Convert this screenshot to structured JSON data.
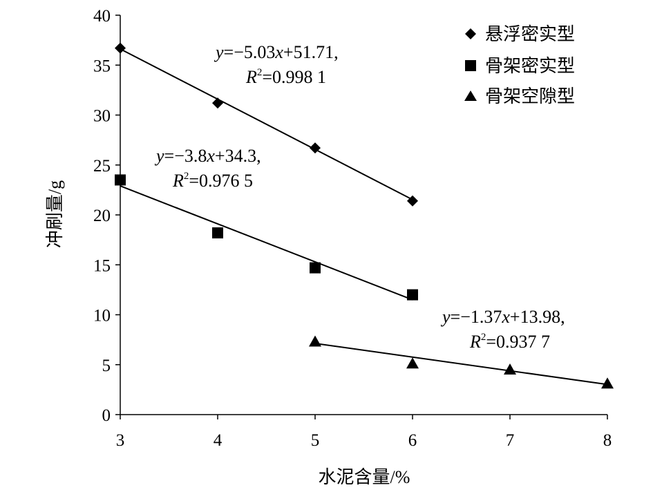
{
  "chart_data": {
    "type": "scatter",
    "xlabel": "水泥含量/%",
    "ylabel": "冲刷量/g",
    "xlim": [
      3,
      8
    ],
    "ylim": [
      0,
      40
    ],
    "xticks": [
      3,
      4,
      5,
      6,
      7,
      8
    ],
    "yticks": [
      0,
      5,
      10,
      15,
      20,
      25,
      30,
      35,
      40
    ],
    "grid": false,
    "legend_position": "top-right",
    "series": [
      {
        "name": "悬浮密实型",
        "marker": "diamond",
        "color": "#000000",
        "x": [
          3,
          4,
          5,
          6
        ],
        "y": [
          36.7,
          31.2,
          26.7,
          21.4
        ],
        "fit": {
          "slope": -5.03,
          "intercept": 51.71,
          "x_range": [
            3,
            6
          ]
        },
        "equation": {
          "y": "y",
          "rhs": "=−5.03",
          "x": "x",
          "tail": "+51.71,",
          "r2_R": "R",
          "r2_sup": "2",
          "r2_val": "=0.998 1"
        }
      },
      {
        "name": "骨架密实型",
        "marker": "square",
        "color": "#000000",
        "x": [
          3,
          4,
          5,
          6
        ],
        "y": [
          23.5,
          18.2,
          14.7,
          12.0
        ],
        "fit": {
          "slope": -3.8,
          "intercept": 34.3,
          "x_range": [
            3,
            6
          ]
        },
        "equation": {
          "y": "y",
          "rhs": "=−3.8",
          "x": "x",
          "tail": "+34.3,",
          "r2_R": "R",
          "r2_sup": "2",
          "r2_val": "=0.976 5"
        }
      },
      {
        "name": "骨架空隙型",
        "marker": "triangle",
        "color": "#000000",
        "x": [
          5,
          6,
          7,
          8
        ],
        "y": [
          7.3,
          5.1,
          4.5,
          3.1
        ],
        "fit": {
          "slope": -1.37,
          "intercept": 13.98,
          "x_range": [
            5,
            8
          ]
        },
        "equation": {
          "y": "y",
          "rhs": "=−1.37",
          "x": "x",
          "tail": "+13.98,",
          "r2_R": "R",
          "r2_sup": "2",
          "r2_val": "=0.937 7"
        }
      }
    ]
  }
}
